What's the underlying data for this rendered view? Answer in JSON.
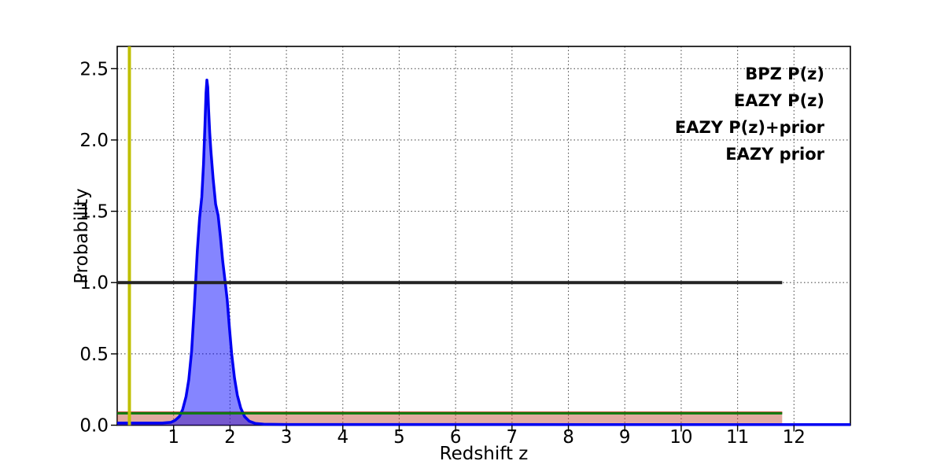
{
  "chart_data": {
    "type": "line",
    "xlabel": "Redshift z",
    "ylabel": "Probability",
    "xlim": [
      0,
      13
    ],
    "ylim": [
      0,
      2.656
    ],
    "xticks": [
      1,
      2,
      3,
      4,
      5,
      6,
      7,
      8,
      9,
      10,
      11,
      12
    ],
    "xtick_labels": [
      "1",
      "2",
      "3",
      "4",
      "5",
      "6",
      "7",
      "8",
      "9",
      "10",
      "11",
      "12"
    ],
    "yticks": [
      0,
      0.5,
      1.0,
      1.5,
      2.0,
      2.5
    ],
    "ytick_labels": [
      "0.0",
      "0.5",
      "1.0",
      "1.5",
      "2.0",
      "2.5"
    ],
    "grid": {
      "style": "dotted",
      "color": "#333333"
    },
    "legend": {
      "position": "upper right",
      "entries": [
        {
          "label": "BPZ P(z)",
          "color": "#0000ff"
        },
        {
          "label": "EAZY P(z)",
          "color": "#ff0000"
        },
        {
          "label": "EAZY P(z)+prior",
          "color": "#008000"
        },
        {
          "label": "EAZY prior",
          "color": "#000000"
        }
      ]
    },
    "series": [
      {
        "name": "EAZY P(z)",
        "type": "curve",
        "color": "#ff0000",
        "lw": 2.5,
        "fill": "#c1442e",
        "fill_alpha": 0.45,
        "points": [
          [
            0,
            0.088
          ],
          [
            11.79,
            0.088
          ]
        ]
      },
      {
        "name": "BPZ P(z)",
        "type": "curve",
        "color": "#0000f2",
        "lw": 3.5,
        "fill": "#0000ff",
        "fill_alpha": 0.48,
        "points": [
          [
            0,
            0.015
          ],
          [
            0.8,
            0.015
          ],
          [
            0.95,
            0.02
          ],
          [
            1.03,
            0.035
          ],
          [
            1.1,
            0.06
          ],
          [
            1.16,
            0.11
          ],
          [
            1.22,
            0.2
          ],
          [
            1.27,
            0.32
          ],
          [
            1.32,
            0.52
          ],
          [
            1.37,
            0.85
          ],
          [
            1.42,
            1.22
          ],
          [
            1.46,
            1.45
          ],
          [
            1.5,
            1.6
          ],
          [
            1.53,
            1.83
          ],
          [
            1.555,
            2.1
          ],
          [
            1.575,
            2.33
          ],
          [
            1.59,
            2.42
          ],
          [
            1.605,
            2.37
          ],
          [
            1.62,
            2.22
          ],
          [
            1.64,
            2.05
          ],
          [
            1.66,
            1.93
          ],
          [
            1.7,
            1.73
          ],
          [
            1.745,
            1.55
          ],
          [
            1.79,
            1.47
          ],
          [
            1.83,
            1.32
          ],
          [
            1.87,
            1.15
          ],
          [
            1.91,
            1.02
          ],
          [
            1.95,
            0.88
          ],
          [
            1.99,
            0.68
          ],
          [
            2.03,
            0.5
          ],
          [
            2.08,
            0.33
          ],
          [
            2.13,
            0.21
          ],
          [
            2.19,
            0.12
          ],
          [
            2.26,
            0.06
          ],
          [
            2.34,
            0.028
          ],
          [
            2.45,
            0.012
          ],
          [
            2.6,
            0.007
          ],
          [
            3,
            0.005
          ],
          [
            13,
            0.004
          ]
        ]
      },
      {
        "name": "EAZY P(z)+prior",
        "type": "curve",
        "color": "#0f7a0f",
        "lw": 3.2,
        "points": [
          [
            0,
            0.084
          ],
          [
            11.79,
            0.084
          ]
        ]
      },
      {
        "name": "z marker",
        "type": "vline",
        "x": 0.216,
        "color": "#bfbf00",
        "lw": 4
      },
      {
        "name": "EAZY prior",
        "type": "curve",
        "color": "#242424",
        "lw": 4,
        "points": [
          [
            0,
            1.0
          ],
          [
            11.79,
            1.0
          ]
        ]
      }
    ]
  }
}
